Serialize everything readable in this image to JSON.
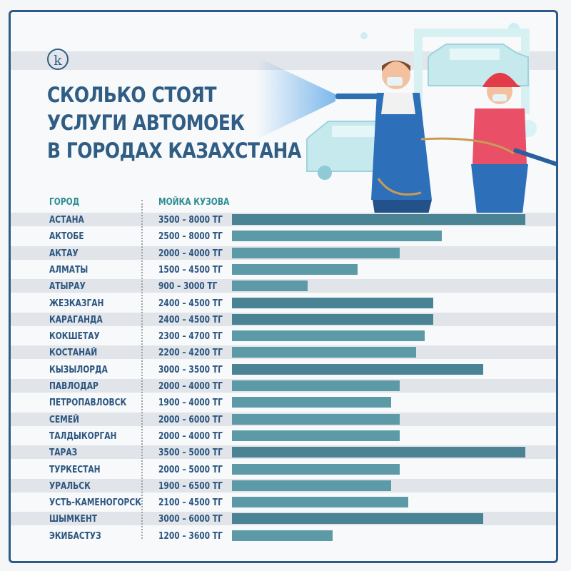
{
  "logo": "k",
  "title_lines": [
    "СКОЛЬКО СТОЯТ",
    "УСЛУГИ АВТОМОЕК",
    "В ГОРОДАХ КАЗАХСТАНА"
  ],
  "columns": {
    "city": "ГОРОД",
    "price": "МОЙКА КУЗОВА"
  },
  "colors": {
    "accent": "#2f5d84",
    "header": "#2e8d93",
    "bar": "#5c9aa7",
    "bar_dark": "#4a8494"
  },
  "chart_data": {
    "type": "bar",
    "orientation": "horizontal",
    "categories": [
      "АСТАНА",
      "АКТОБЕ",
      "АКТАУ",
      "АЛМАТЫ",
      "АТЫРАУ",
      "ЖЕЗКАЗГАН",
      "КАРАГАНДА",
      "КОКШЕТАУ",
      "КОСТАНАЙ",
      "КЫЗЫЛОРДА",
      "ПАВЛОДАР",
      "ПЕТРОПАВЛОВСК",
      "СЕМЕЙ",
      "ТАЛДЫКОРГАН",
      "ТАРАЗ",
      "ТУРКЕСТАН",
      "УРАЛЬСК",
      "УСТЬ-КАМЕНОГОРСК",
      "ШЫМКЕНТ",
      "ЭКИБАСТУЗ"
    ],
    "labels": [
      "3500 – 8000 ТГ",
      "2500 – 8000 ТГ",
      "2000 – 4000 ТГ",
      "1500 – 4500 ТГ",
      "900 – 3000 ТГ",
      "2400 – 4500 ТГ",
      "2400 – 4500 ТГ",
      "2300 – 4700 ТГ",
      "2200 – 4200 ТГ",
      "3000 – 3500 ТГ",
      "2000 – 4000 ТГ",
      "1900 – 4000 ТГ",
      "2000 – 6000 ТГ",
      "2000 – 4000 ТГ",
      "3500 – 5000 ТГ",
      "2000 – 5000 ТГ",
      "1900 – 6500 ТГ",
      "2100 – 4500 ТГ",
      "3000 – 6000 ТГ",
      "1200 – 3600 ТГ"
    ],
    "values": [
      3500,
      2500,
      2000,
      1500,
      900,
      2400,
      2400,
      2300,
      2200,
      3000,
      2000,
      1900,
      2000,
      2000,
      3500,
      2000,
      1900,
      2100,
      3000,
      1200
    ],
    "xlim": [
      0,
      3500
    ],
    "dark_rows": [
      0,
      5,
      6,
      9,
      14,
      18
    ]
  }
}
